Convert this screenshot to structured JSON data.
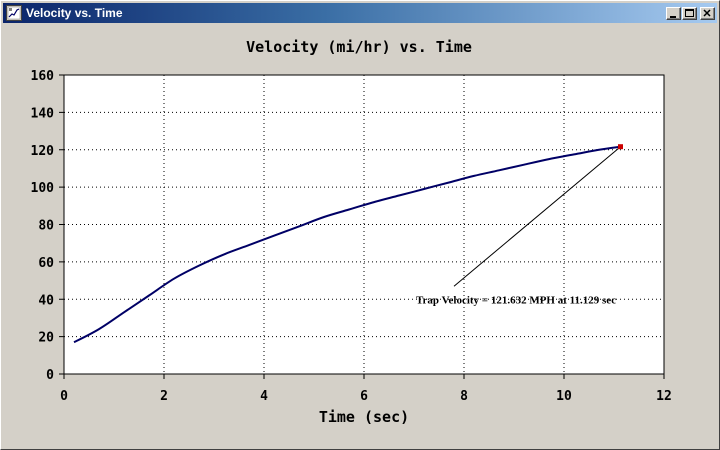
{
  "window": {
    "title": "Velocity vs. Time",
    "minimize_icon": "minimize-icon",
    "maximize_icon": "maximize-icon",
    "close_icon": "close-icon",
    "app_icon": "graph-app-icon"
  },
  "colors": {
    "title_gradient_start": "#0a246a",
    "title_gradient_end": "#a6caf0",
    "curve": "#000066",
    "marker": "#cc0000",
    "plot_bg": "#ffffff",
    "window_bg": "#d4d0c8"
  },
  "chart_data": {
    "type": "line",
    "title": "Velocity (mi/hr) vs. Time",
    "xlabel": "Time (sec)",
    "ylabel": "",
    "xlim": [
      0,
      12
    ],
    "ylim": [
      0,
      160
    ],
    "xticks": [
      "0",
      "2",
      "4",
      "6",
      "8",
      "10",
      "12"
    ],
    "yticks": [
      "0",
      "20",
      "40",
      "60",
      "80",
      "100",
      "120",
      "140",
      "160"
    ],
    "grid": true,
    "series": [
      {
        "x": [
          0.2,
          0.7,
          1.2,
          1.7,
          2.2,
          2.7,
          3.2,
          3.7,
          4.2,
          4.7,
          5.2,
          5.7,
          6.2,
          6.7,
          7.2,
          7.7,
          8.2,
          8.7,
          9.2,
          9.7,
          10.2,
          10.7,
          11.129
        ],
        "y": [
          17,
          24,
          33,
          42,
          51,
          58,
          64,
          69,
          74,
          79,
          84,
          88,
          92,
          95.5,
          99,
          102.5,
          106,
          109,
          112,
          115,
          117.5,
          120,
          121.632
        ]
      }
    ],
    "marker_point": {
      "x": 11.129,
      "y": 121.632
    },
    "annotation": {
      "text": "Trap Velocity = 121.632 MPH at 11.129 sec",
      "anchor_x": 7.8,
      "anchor_y": 40,
      "line_start": {
        "x": 7.8,
        "y": 47
      },
      "line_end": {
        "x": 11.129,
        "y": 121.632
      }
    }
  }
}
